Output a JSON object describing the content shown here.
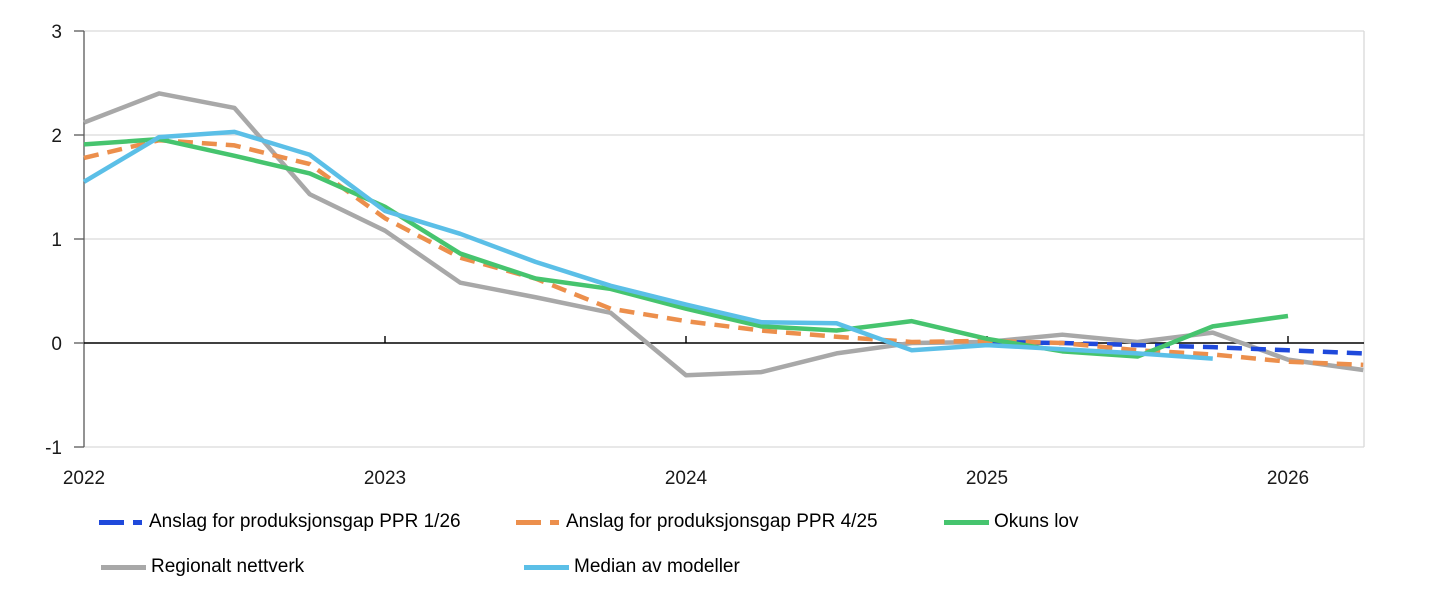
{
  "chart_data": {
    "type": "line",
    "title": "",
    "xlabel": "",
    "ylabel": "",
    "x_unit": "quarterly",
    "x_range": [
      2022,
      2026.25
    ],
    "ylim": [
      -1,
      3
    ],
    "y_ticks": [
      3,
      2,
      1,
      0,
      -1
    ],
    "x_ticks": [
      2022,
      2023,
      2024,
      2025,
      2026
    ],
    "x_tick_labels": [
      "2022",
      "2023",
      "2024",
      "2025",
      "2026"
    ],
    "grid": "horizontal",
    "legend_position": "bottom",
    "series": [
      {
        "name": "Anslag for produksjonsgap PPR 1/26",
        "color": "#1F49DB",
        "style": "dashed",
        "start": 2025.0,
        "values": [
          0.01,
          0.0,
          -0.02,
          -0.04,
          -0.07,
          -0.1
        ]
      },
      {
        "name": "Anslag for produksjonsgap PPR 4/25",
        "color": "#EC8F4C",
        "style": "dashed",
        "start": 2022.0,
        "values": [
          1.78,
          1.95,
          1.9,
          1.72,
          1.2,
          0.82,
          0.62,
          0.33,
          0.21,
          0.12,
          0.06,
          0.01,
          0.02,
          0.0,
          -0.07,
          -0.11,
          -0.18,
          -0.21
        ]
      },
      {
        "name": "Okuns lov",
        "color": "#46C46E",
        "style": "solid",
        "start": 2022.0,
        "values": [
          1.91,
          1.96,
          1.8,
          1.63,
          1.31,
          0.86,
          0.62,
          0.52,
          0.33,
          0.16,
          0.12,
          0.21,
          0.04,
          -0.08,
          -0.13,
          0.16,
          0.26
        ]
      },
      {
        "name": "Regionalt nettverk",
        "color": "#A8A8A8",
        "style": "solid",
        "start": 2022.0,
        "values": [
          2.12,
          2.4,
          2.26,
          1.43,
          1.08,
          0.58,
          0.44,
          0.29,
          -0.31,
          -0.28,
          -0.1,
          0.0,
          0.01,
          0.08,
          0.01,
          0.1,
          -0.16,
          -0.26
        ]
      },
      {
        "name": "Median av modeller",
        "color": "#5BBFE7",
        "style": "solid",
        "start": 2022.0,
        "values": [
          1.55,
          1.98,
          2.03,
          1.81,
          1.27,
          1.05,
          0.78,
          0.55,
          0.37,
          0.2,
          0.19,
          -0.07,
          -0.02,
          -0.06,
          -0.1,
          -0.15
        ]
      }
    ]
  }
}
